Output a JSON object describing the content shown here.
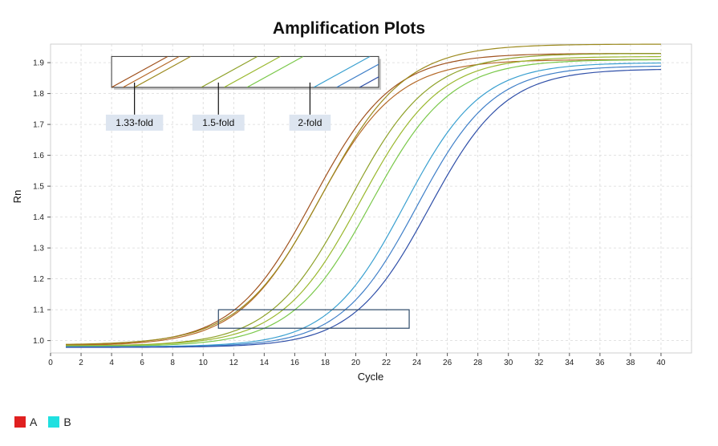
{
  "chart_data": {
    "type": "line",
    "title": "Amplification Plots",
    "xlabel": "Cycle",
    "ylabel": "Rn",
    "xlim": [
      0,
      42
    ],
    "ylim": [
      0.96,
      1.96
    ],
    "x_ticks": [
      0,
      2,
      4,
      6,
      8,
      10,
      12,
      14,
      16,
      18,
      20,
      22,
      24,
      26,
      28,
      30,
      32,
      34,
      36,
      38,
      40
    ],
    "y_ticks": [
      1.0,
      1.1,
      1.2,
      1.3,
      1.4,
      1.5,
      1.6,
      1.7,
      1.8,
      1.9
    ],
    "grid": true,
    "x_range_cycles": [
      1,
      40
    ],
    "series": [
      {
        "color": "#a0521e",
        "baseline": 0.985,
        "plateau": 1.93,
        "midpoint_cycle": 17.2,
        "slope": 2.6
      },
      {
        "color": "#b56a2a",
        "baseline": 0.983,
        "plateau": 1.91,
        "midpoint_cycle": 17.5,
        "slope": 2.6
      },
      {
        "color": "#9c8a1e",
        "baseline": 0.986,
        "plateau": 1.96,
        "midpoint_cycle": 17.8,
        "slope": 2.7
      },
      {
        "color": "#8ea128",
        "baseline": 0.982,
        "plateau": 1.93,
        "midpoint_cycle": 19.6,
        "slope": 2.6
      },
      {
        "color": "#9ab82e",
        "baseline": 0.983,
        "plateau": 1.92,
        "midpoint_cycle": 20.3,
        "slope": 2.6
      },
      {
        "color": "#7ac84a",
        "baseline": 0.981,
        "plateau": 1.91,
        "midpoint_cycle": 21.0,
        "slope": 2.6
      },
      {
        "color": "#3aa0d0",
        "baseline": 0.98,
        "plateau": 1.9,
        "midpoint_cycle": 23.2,
        "slope": 2.5
      },
      {
        "color": "#3f7fc8",
        "baseline": 0.979,
        "plateau": 1.89,
        "midpoint_cycle": 24.0,
        "slope": 2.5
      },
      {
        "color": "#2f4fa8",
        "baseline": 0.978,
        "plateau": 1.88,
        "midpoint_cycle": 24.8,
        "slope": 2.5
      }
    ],
    "highlight_box": {
      "x": [
        11,
        23.5
      ],
      "y": [
        1.04,
        1.1
      ]
    },
    "inset_box": {
      "x": [
        4,
        21.5
      ],
      "y": [
        1.82,
        1.92
      ]
    },
    "annotations": [
      {
        "text": "1.33-fold",
        "cycle": 5.5
      },
      {
        "text": "1.5-fold",
        "cycle": 11.0
      },
      {
        "text": "2-fold",
        "cycle": 17.0
      }
    ],
    "legend": [
      {
        "label": "A",
        "color": "#e02020"
      },
      {
        "label": "B",
        "color": "#20e0e0"
      }
    ]
  }
}
